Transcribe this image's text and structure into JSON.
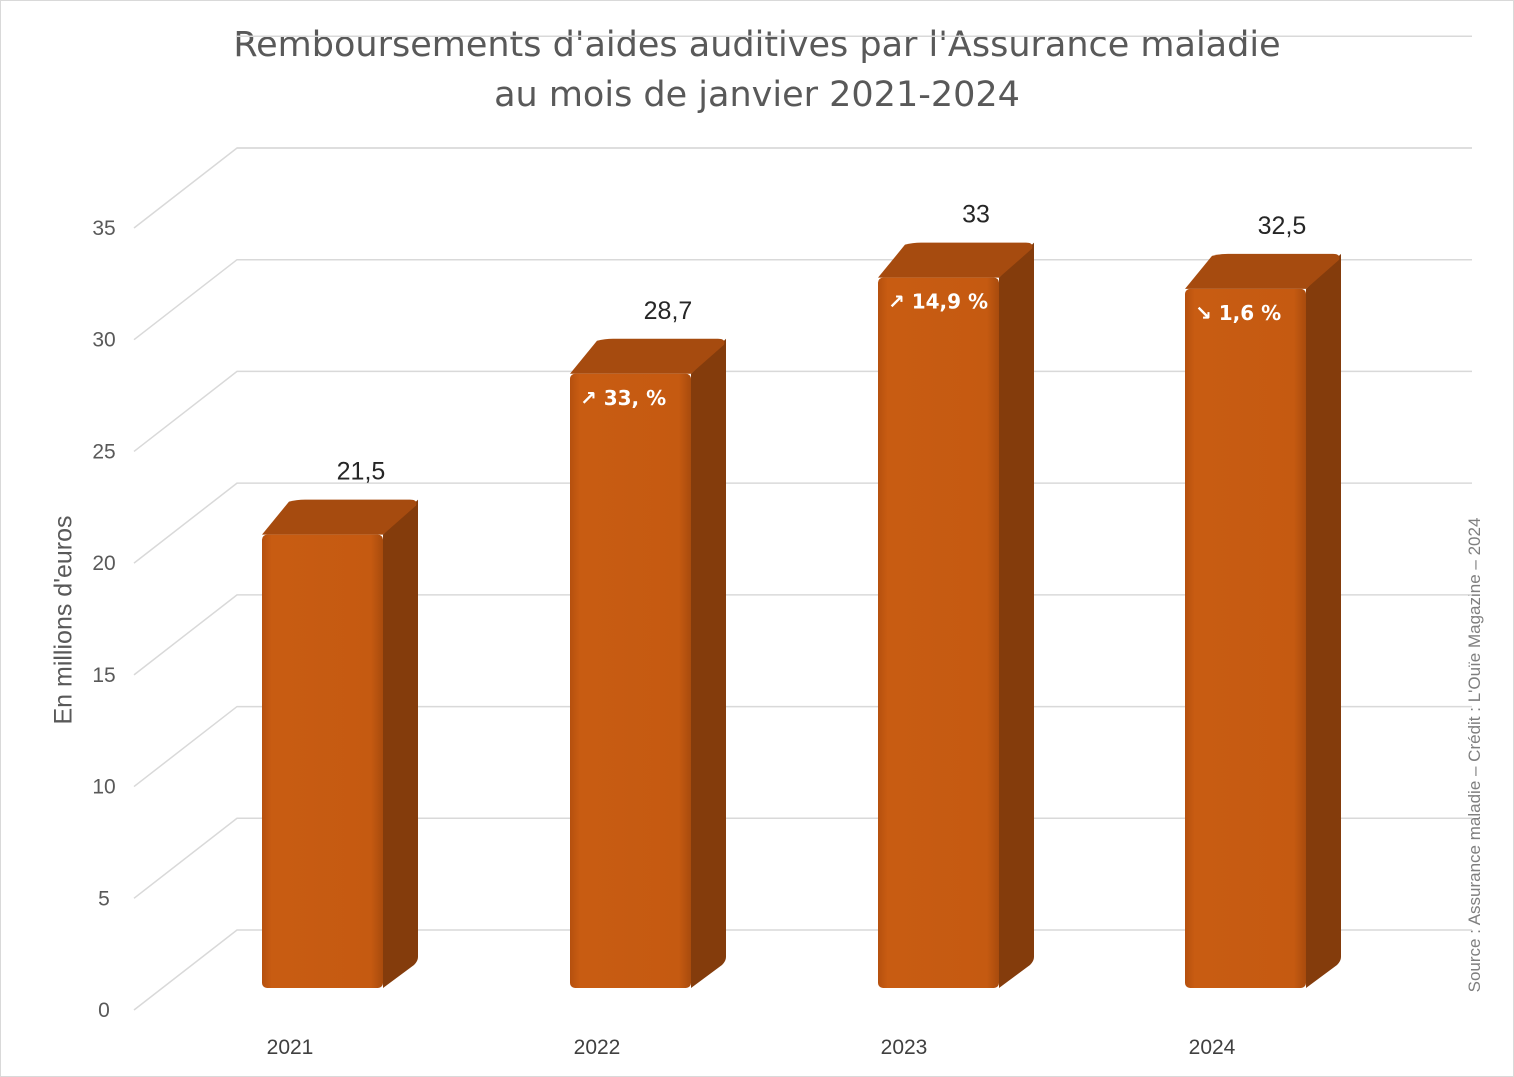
{
  "chart_data": {
    "type": "bar",
    "title": [
      "Remboursements d'aides auditives par l'Assurance maladie",
      "au mois de janvier 2021-2024"
    ],
    "ylabel": "En millions d'euros",
    "xlabel": "",
    "categories": [
      "2021",
      "2022",
      "2023",
      "2024"
    ],
    "values": [
      21.5,
      28.7,
      33,
      32.5
    ],
    "value_labels": [
      "21,5",
      "28,7",
      "33",
      "32,5"
    ],
    "annotations": [
      "",
      "↗ 33, %",
      "↗ 14,9 %",
      "↘ 1,6 %"
    ],
    "ylim": [
      0,
      35
    ],
    "yticks": [
      0,
      5,
      10,
      15,
      20,
      25,
      30,
      35
    ],
    "grid": true,
    "style": "3d-column",
    "colors": {
      "bar_front": "#c55a11",
      "bar_side": "#843c0c",
      "bar_top": "#a64b0f",
      "grid": "#d9d9d9"
    },
    "source": "Source : Assurance maladie – Crédit : L'Ouïe Magazine – 2024"
  }
}
